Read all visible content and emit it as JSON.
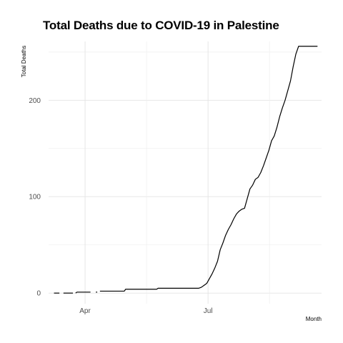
{
  "chart_data": {
    "type": "line",
    "title": "Total Deaths due to COVID-19 in Palestine",
    "xlabel": "Month",
    "ylabel": "Total Deaths",
    "x_axis_type": "date",
    "xlim": [
      "2020-03-05",
      "2020-09-23"
    ],
    "ylim": [
      -11,
      261
    ],
    "x_ticks": [
      {
        "date": "2020-04-01",
        "label": "Apr"
      },
      {
        "date": "2020-07-01",
        "label": "Jul"
      }
    ],
    "y_ticks": [
      0,
      100,
      200
    ],
    "grid": true,
    "legend": "none",
    "line_color": "#000000",
    "series": [
      {
        "x": [
          "2020-03-09",
          "2020-03-13",
          "2020-03-16",
          "2020-03-20",
          "2020-03-23",
          "2020-03-25",
          "2020-03-26",
          "2020-03-31",
          "2020-04-04",
          "2020-04-05",
          "2020-04-09",
          "2020-04-10",
          "2020-04-12",
          "2020-04-30",
          "2020-05-01",
          "2020-05-24",
          "2020-05-25",
          "2020-06-24",
          "2020-06-26",
          "2020-06-28",
          "2020-06-30",
          "2020-07-02",
          "2020-07-04",
          "2020-07-06",
          "2020-07-08",
          "2020-07-10",
          "2020-07-12",
          "2020-07-14",
          "2020-07-16",
          "2020-07-18",
          "2020-07-20",
          "2020-07-22",
          "2020-07-24",
          "2020-07-26",
          "2020-07-28",
          "2020-07-30",
          "2020-08-01",
          "2020-08-03",
          "2020-08-05",
          "2020-08-07",
          "2020-08-09",
          "2020-08-11",
          "2020-08-13",
          "2020-08-15",
          "2020-08-17",
          "2020-08-19",
          "2020-08-21",
          "2020-08-23",
          "2020-08-25",
          "2020-08-27",
          "2020-08-29",
          "2020-08-31",
          "2020-09-02",
          "2020-09-04",
          "2020-09-06",
          "2020-09-08",
          "2020-09-10",
          "2020-09-12",
          "2020-09-14",
          "2020-09-16",
          "2020-09-18",
          "2020-09-20"
        ],
        "y": [
          0,
          0,
          0,
          0,
          0,
          0,
          1,
          1,
          1,
          1,
          1,
          1,
          2,
          2,
          4,
          4,
          5,
          5,
          6,
          8,
          10,
          15,
          20,
          26,
          33,
          45,
          52,
          60,
          66,
          71,
          77,
          82,
          85,
          87,
          88,
          98,
          108,
          112,
          118,
          120,
          125,
          132,
          140,
          148,
          158,
          163,
          172,
          183,
          192,
          200,
          210,
          220,
          235,
          248,
          256,
          256,
          256,
          256,
          256,
          256,
          256,
          256
        ],
        "gaps_after": [
          "2020-03-13",
          "2020-03-23",
          "2020-04-05",
          "2020-04-10"
        ]
      }
    ]
  }
}
